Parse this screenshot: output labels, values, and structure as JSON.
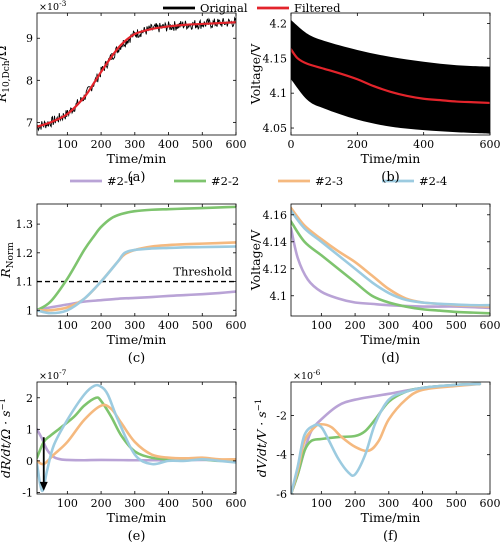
{
  "legend_top": [
    {
      "name": "Original",
      "color": "#000000"
    },
    {
      "name": "Filtered",
      "color": "#e3242b"
    }
  ],
  "legend_mid": [
    {
      "name": "#2-1",
      "color": "#b9a3d6"
    },
    {
      "name": "#2-2",
      "color": "#7ec46e"
    },
    {
      "name": "#2-3",
      "color": "#f5b97f"
    },
    {
      "name": "#2-4",
      "color": "#9ccbe0"
    }
  ],
  "chart_data": [
    {
      "id": "a",
      "type": "line",
      "caption": "(a)",
      "xlabel": "Time/min",
      "ylabel": "R10,Dch/Ω",
      "ylabel_main": "R",
      "ylabel_sub": "10,Dch",
      "ylabel_unit": "/Ω",
      "multiplier": "×10",
      "multiplier_exp": "-3",
      "xlim": [
        10,
        600
      ],
      "ylim": [
        6.7,
        9.6
      ],
      "xticks": [
        100,
        200,
        300,
        400,
        500,
        600
      ],
      "yticks": [
        7,
        8,
        9
      ],
      "series": [
        {
          "name": "Original",
          "x": [
            10,
            50,
            100,
            150,
            180,
            200,
            230,
            260,
            300,
            350,
            400,
            450,
            500,
            550,
            600
          ],
          "y": [
            6.9,
            7.0,
            7.2,
            7.6,
            7.95,
            8.2,
            8.55,
            8.85,
            9.1,
            9.22,
            9.28,
            9.32,
            9.34,
            9.36,
            9.38
          ],
          "noise": 0.12
        },
        {
          "name": "Filtered",
          "x": [
            10,
            50,
            100,
            150,
            180,
            200,
            230,
            260,
            300,
            350,
            400,
            450,
            500,
            550,
            600
          ],
          "y": [
            6.9,
            7.0,
            7.2,
            7.6,
            7.95,
            8.2,
            8.55,
            8.85,
            9.1,
            9.22,
            9.28,
            9.32,
            9.34,
            9.36,
            9.38
          ]
        }
      ]
    },
    {
      "id": "b",
      "type": "area",
      "caption": "(b)",
      "xlabel": "Time/min",
      "ylabel": "Voltage/V",
      "xlim": [
        0,
        600
      ],
      "ylim": [
        4.04,
        4.215
      ],
      "xticks": [
        0,
        200,
        400,
        600
      ],
      "yticks": [
        4.05,
        4.1,
        4.15,
        4.2
      ],
      "band": {
        "x": [
          0,
          50,
          100,
          200,
          300,
          400,
          500,
          600
        ],
        "upper": [
          4.205,
          4.185,
          4.175,
          4.162,
          4.152,
          4.145,
          4.14,
          4.138
        ],
        "lower": [
          4.12,
          4.09,
          4.078,
          4.062,
          4.052,
          4.047,
          4.044,
          4.042
        ]
      },
      "series": [
        {
          "name": "Filtered",
          "x": [
            0,
            20,
            50,
            100,
            150,
            200,
            250,
            300,
            350,
            400,
            450,
            500,
            550,
            600
          ],
          "y": [
            4.163,
            4.15,
            4.142,
            4.135,
            4.128,
            4.12,
            4.11,
            4.102,
            4.096,
            4.092,
            4.09,
            4.088,
            4.087,
            4.086
          ]
        }
      ]
    },
    {
      "id": "c",
      "type": "line",
      "caption": "(c)",
      "xlabel": "Time/min",
      "ylabel": "RNorm",
      "ylabel_main": "R",
      "ylabel_sub": "Norm",
      "xlim": [
        10,
        600
      ],
      "ylim": [
        0.98,
        1.37
      ],
      "xticks": [
        100,
        200,
        300,
        400,
        500,
        600
      ],
      "yticks": [
        1,
        1.1,
        1.2,
        1.3
      ],
      "threshold": {
        "y": 1.1,
        "label": "Threshold"
      },
      "series": [
        {
          "name": "#2-1",
          "x": [
            10,
            50,
            100,
            150,
            200,
            250,
            300,
            350,
            400,
            450,
            500,
            550,
            600
          ],
          "y": [
            1.0,
            1.01,
            1.02,
            1.03,
            1.035,
            1.04,
            1.043,
            1.046,
            1.05,
            1.053,
            1.056,
            1.06,
            1.065
          ]
        },
        {
          "name": "#2-2",
          "x": [
            10,
            50,
            100,
            150,
            180,
            200,
            230,
            260,
            300,
            350,
            400,
            450,
            500,
            550,
            600
          ],
          "y": [
            1.0,
            1.03,
            1.11,
            1.21,
            1.26,
            1.29,
            1.32,
            1.335,
            1.345,
            1.35,
            1.352,
            1.354,
            1.356,
            1.358,
            1.36
          ]
        },
        {
          "name": "#2-3",
          "x": [
            10,
            50,
            100,
            150,
            200,
            250,
            270,
            300,
            350,
            400,
            450,
            500,
            550,
            600
          ],
          "y": [
            1.0,
            1.0,
            1.01,
            1.04,
            1.1,
            1.17,
            1.195,
            1.21,
            1.222,
            1.227,
            1.23,
            1.232,
            1.234,
            1.236
          ]
        },
        {
          "name": "#2-4",
          "x": [
            10,
            50,
            100,
            150,
            200,
            250,
            270,
            300,
            350,
            400,
            450,
            500,
            550,
            600
          ],
          "y": [
            1.0,
            0.99,
            1.0,
            1.04,
            1.1,
            1.17,
            1.2,
            1.21,
            1.215,
            1.217,
            1.219,
            1.22,
            1.221,
            1.222
          ]
        }
      ]
    },
    {
      "id": "d",
      "type": "line",
      "caption": "(d)",
      "xlabel": "Time/min",
      "ylabel": "Voltage/V",
      "xlim": [
        10,
        600
      ],
      "ylim": [
        4.085,
        4.168
      ],
      "xticks": [
        100,
        200,
        300,
        400,
        500,
        600
      ],
      "yticks": [
        4.1,
        4.12,
        4.14,
        4.16
      ],
      "series": [
        {
          "name": "#2-1",
          "x": [
            10,
            30,
            60,
            100,
            150,
            200,
            250,
            300,
            400,
            500,
            600
          ],
          "y": [
            4.15,
            4.128,
            4.112,
            4.103,
            4.098,
            4.095,
            4.094,
            4.093,
            4.092,
            4.092,
            4.091
          ]
        },
        {
          "name": "#2-2",
          "x": [
            10,
            50,
            100,
            150,
            200,
            250,
            300,
            350,
            400,
            450,
            500,
            550,
            600
          ],
          "y": [
            4.155,
            4.14,
            4.13,
            4.12,
            4.11,
            4.1,
            4.095,
            4.092,
            4.09,
            4.089,
            4.088,
            4.0875,
            4.087
          ]
        },
        {
          "name": "#2-3",
          "x": [
            10,
            50,
            100,
            150,
            200,
            250,
            300,
            350,
            400,
            450,
            500,
            550,
            600
          ],
          "y": [
            4.165,
            4.152,
            4.142,
            4.133,
            4.125,
            4.115,
            4.105,
            4.098,
            4.095,
            4.094,
            4.093,
            4.0925,
            4.092
          ]
        },
        {
          "name": "#2-4",
          "x": [
            10,
            50,
            100,
            150,
            200,
            250,
            300,
            350,
            400,
            450,
            500,
            550,
            600
          ],
          "y": [
            4.163,
            4.15,
            4.14,
            4.13,
            4.12,
            4.11,
            4.102,
            4.097,
            4.095,
            4.094,
            4.0935,
            4.093,
            4.093
          ]
        }
      ]
    },
    {
      "id": "e",
      "type": "line",
      "caption": "(e)",
      "xlabel": "Time/min",
      "ylabel": "dR/dt/Ω·s⁻¹",
      "ylabel_text": "dR/dt/Ω · s",
      "ylabel_sup": "−1",
      "multiplier": "×10",
      "multiplier_exp": "-7",
      "xlim": [
        10,
        600
      ],
      "ylim": [
        -1.05,
        2.5
      ],
      "xticks": [
        100,
        200,
        300,
        400,
        500,
        600
      ],
      "yticks": [
        -1,
        0,
        1,
        2
      ],
      "arrow": {
        "x": 30,
        "y_from": 0.75,
        "y_to": -0.95
      },
      "series": [
        {
          "name": "#2-1",
          "x": [
            10,
            25,
            40,
            60,
            80,
            100,
            150,
            200,
            300,
            400,
            500,
            600
          ],
          "y": [
            1.0,
            0.7,
            0.35,
            0.12,
            0.05,
            0.03,
            0.02,
            0.03,
            0.02,
            0.02,
            0.03,
            0.02
          ]
        },
        {
          "name": "#2-2",
          "x": [
            10,
            30,
            50,
            80,
            120,
            150,
            185,
            200,
            230,
            260,
            300,
            350,
            400,
            450,
            500,
            550,
            600
          ],
          "y": [
            0.1,
            0.6,
            0.8,
            1.05,
            1.4,
            1.75,
            2.0,
            1.9,
            1.4,
            0.8,
            0.3,
            0.1,
            0.05,
            0.05,
            0.05,
            0.0,
            0.05
          ]
        },
        {
          "name": "#2-3",
          "x": [
            10,
            30,
            60,
            100,
            150,
            200,
            230,
            260,
            300,
            350,
            400,
            450,
            500,
            550,
            600
          ],
          "y": [
            0.0,
            -0.1,
            0.2,
            0.6,
            1.3,
            1.75,
            1.65,
            1.2,
            0.6,
            0.2,
            0.1,
            0.08,
            0.1,
            0.05,
            0.05
          ]
        },
        {
          "name": "#2-4",
          "x": [
            10,
            25,
            40,
            60,
            100,
            150,
            180,
            200,
            220,
            250,
            300,
            350,
            400,
            450,
            500,
            550,
            600
          ],
          "y": [
            -0.1,
            -0.95,
            -0.3,
            0.5,
            1.3,
            2.1,
            2.38,
            2.35,
            2.1,
            1.3,
            0.2,
            -0.1,
            0.0,
            0.0,
            0.05,
            0.0,
            -0.05
          ]
        }
      ]
    },
    {
      "id": "f",
      "type": "line",
      "caption": "(f)",
      "xlabel": "Time/min",
      "ylabel": "dV/dt/V·s⁻¹",
      "ylabel_text": "dV/dt/V · s",
      "ylabel_sup": "−1",
      "multiplier": "×10",
      "multiplier_exp": "-6",
      "xlim": [
        10,
        600
      ],
      "ylim": [
        -6.0,
        -0.3
      ],
      "xticks": [
        100,
        200,
        300,
        400,
        500,
        600
      ],
      "yticks": [
        -6,
        -4,
        -2
      ],
      "series": [
        {
          "name": "#2-1",
          "x": [
            10,
            30,
            50,
            70,
            100,
            150,
            200,
            300,
            400,
            500,
            570
          ],
          "y": [
            -6.0,
            -5.0,
            -3.8,
            -2.8,
            -2.2,
            -1.5,
            -1.2,
            -0.9,
            -0.6,
            -0.45,
            -0.4
          ]
        },
        {
          "name": "#2-2",
          "x": [
            10,
            30,
            50,
            70,
            100,
            150,
            200,
            230,
            260,
            300,
            350,
            400,
            500,
            570
          ],
          "y": [
            -6.0,
            -5.0,
            -3.8,
            -3.3,
            -3.2,
            -3.1,
            -3.05,
            -2.8,
            -2.2,
            -1.3,
            -0.8,
            -0.6,
            -0.45,
            -0.4
          ]
        },
        {
          "name": "#2-3",
          "x": [
            10,
            30,
            50,
            80,
            100,
            130,
            160,
            200,
            240,
            270,
            300,
            350,
            400,
            500,
            570
          ],
          "y": [
            -6.0,
            -4.8,
            -3.3,
            -2.6,
            -2.45,
            -2.6,
            -3.1,
            -3.6,
            -3.8,
            -3.3,
            -2.2,
            -1.2,
            -0.7,
            -0.5,
            -0.4
          ]
        },
        {
          "name": "#2-4",
          "x": [
            10,
            30,
            50,
            80,
            100,
            120,
            150,
            180,
            200,
            230,
            260,
            300,
            350,
            400,
            500,
            570
          ],
          "y": [
            -6.0,
            -4.6,
            -3.0,
            -2.5,
            -2.6,
            -3.2,
            -4.2,
            -4.9,
            -5.0,
            -4.0,
            -2.4,
            -1.2,
            -0.8,
            -0.6,
            -0.45,
            -0.4
          ]
        }
      ]
    }
  ]
}
